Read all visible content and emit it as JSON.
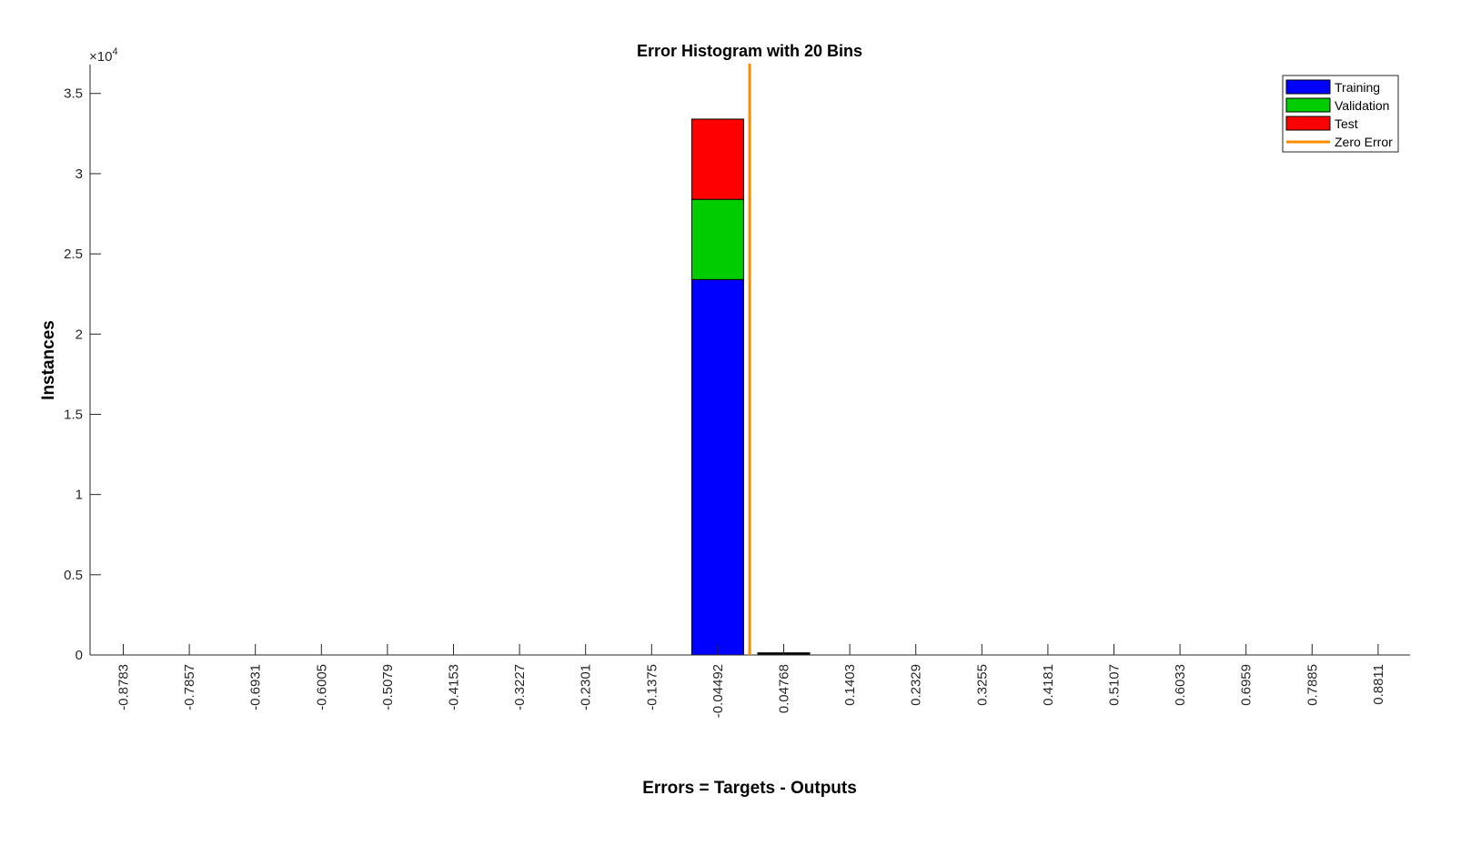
{
  "chart_data": {
    "type": "bar",
    "stacked": true,
    "title": "Error Histogram with 20 Bins",
    "xlabel": "Errors = Targets - Outputs",
    "ylabel": "Instances",
    "y_exponent_label": "×10",
    "y_exponent_power": "4",
    "ylim": [
      0,
      36800
    ],
    "y_ticks": [
      0,
      5000,
      10000,
      15000,
      20000,
      25000,
      30000,
      35000
    ],
    "y_tick_labels": [
      "0",
      "0.5",
      "1",
      "1.5",
      "2",
      "2.5",
      "3",
      "3.5"
    ],
    "categories": [
      "-0.8783",
      "-0.7857",
      "-0.6931",
      "-0.6005",
      "-0.5079",
      "-0.4153",
      "-0.3227",
      "-0.2301",
      "-0.1375",
      "-0.04492",
      "0.04768",
      "0.1403",
      "0.2329",
      "0.3255",
      "0.4181",
      "0.5107",
      "0.6033",
      "0.6959",
      "0.7885",
      "0.8811"
    ],
    "series": [
      {
        "name": "Training",
        "color": "#0000ff",
        "values": [
          0,
          0,
          0,
          0,
          0,
          0,
          0,
          0,
          0,
          23400,
          60,
          0,
          0,
          0,
          0,
          0,
          0,
          0,
          0,
          0
        ]
      },
      {
        "name": "Validation",
        "color": "#00cc00",
        "values": [
          0,
          0,
          0,
          0,
          0,
          0,
          0,
          0,
          0,
          5000,
          15,
          0,
          0,
          0,
          0,
          0,
          0,
          0,
          0,
          0
        ]
      },
      {
        "name": "Test",
        "color": "#ff0000",
        "values": [
          0,
          0,
          0,
          0,
          0,
          0,
          0,
          0,
          0,
          5000,
          15,
          0,
          0,
          0,
          0,
          0,
          0,
          0,
          0,
          0
        ]
      }
    ],
    "zero_error": {
      "name": "Zero Error",
      "color": "#ff8c00",
      "x": 0
    },
    "legend_position": "top-right",
    "grid": false
  }
}
